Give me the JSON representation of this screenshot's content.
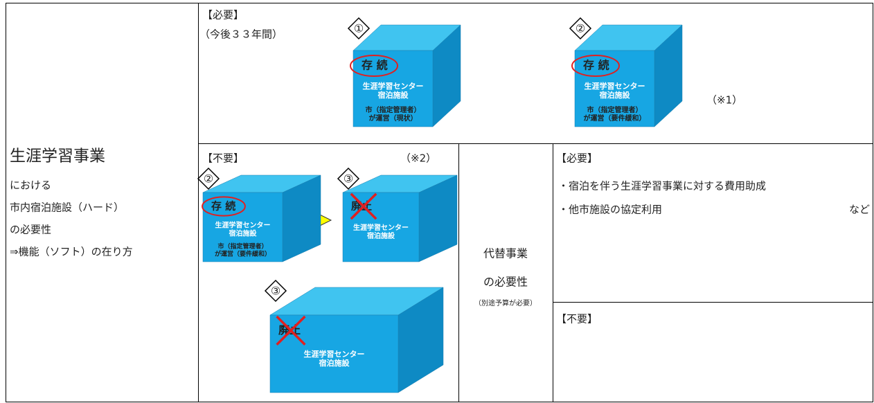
{
  "row_header": {
    "title": "生涯学習事業",
    "lines": [
      "における",
      "市内宿泊施設（ハード）",
      "の必要性",
      "⇒機能（ソフト）の在り方"
    ]
  },
  "top": {
    "heading": "【必要】",
    "period": "（今後３３年間）",
    "note": "（※1）",
    "cubes": [
      {
        "badge": "①",
        "status": "存 続",
        "facility": [
          "生涯学習センター",
          "宿泊施設"
        ],
        "operator": [
          "市（指定管理者）",
          "が運営（現状）"
        ]
      },
      {
        "badge": "②",
        "status": "存 続",
        "facility": [
          "生涯学習センター",
          "宿泊施設"
        ],
        "operator": [
          "市（指定管理者）",
          "が運営（要件緩和）"
        ]
      }
    ]
  },
  "bottom": {
    "heading": "【不要】",
    "note": "（※2）",
    "cubes": [
      {
        "badge": "②",
        "status": "存 続",
        "facility": [
          "生涯学習センター",
          "宿泊施設"
        ],
        "operator": [
          "市（指定管理者）",
          "が運営（要件緩和）"
        ]
      },
      {
        "badge": "③",
        "status": "廃止",
        "facility": [
          "生涯学習センター",
          "宿泊施設"
        ]
      },
      {
        "badge": "③",
        "status": "廃止",
        "facility": [
          "生涯学習センター",
          "宿泊施設"
        ]
      }
    ]
  },
  "alternative": {
    "lines": [
      "代替事業",
      "の必要性"
    ],
    "note": "（別途予算が必要）"
  },
  "needed": {
    "heading": "【必要】",
    "items": [
      "・宿泊を伴う生涯学習事業に対する費用助成",
      "・他市施設の協定利用"
    ],
    "suffix": "など"
  },
  "unneeded": {
    "heading": "【不要】"
  }
}
